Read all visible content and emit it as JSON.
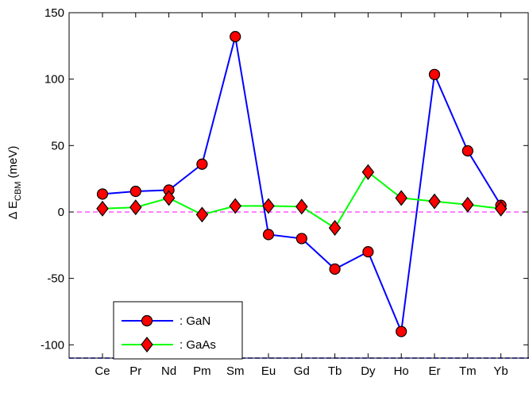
{
  "chart_data": {
    "type": "line",
    "title": "",
    "xlabel": "",
    "ylabel": "Δ E",
    "ylabel_subscript": "CBM",
    "ylabel_unit": "(meV)",
    "categories": [
      "Ce",
      "Pr",
      "Nd",
      "Pm",
      "Sm",
      "Eu",
      "Gd",
      "Tb",
      "Dy",
      "Ho",
      "Er",
      "Tm",
      "Yb"
    ],
    "ylim": [
      -110,
      150
    ],
    "yticks": [
      -100,
      -50,
      0,
      50,
      100,
      150
    ],
    "zero_line": 0,
    "grid": false,
    "legend": "bottom-left",
    "series": [
      {
        "name": ": GaN",
        "marker": "circle",
        "line_color": "#0000ff",
        "marker_color": "#ff0000",
        "values": [
          13.5,
          15.5,
          16.5,
          36,
          132,
          -17,
          -20,
          -43,
          -30,
          -90,
          103.5,
          46,
          5
        ]
      },
      {
        "name": ": GaAs",
        "marker": "diamond",
        "line_color": "#00ff00",
        "marker_color": "#ff0000",
        "values": [
          2.5,
          3.5,
          10.5,
          -2,
          4.5,
          4.5,
          4,
          -12,
          30,
          10.5,
          8,
          5.5,
          2.5
        ]
      }
    ],
    "colors": {
      "zero_line": "#ff00ff",
      "bottom_line": "#0000ff",
      "axes": "#000000"
    }
  }
}
